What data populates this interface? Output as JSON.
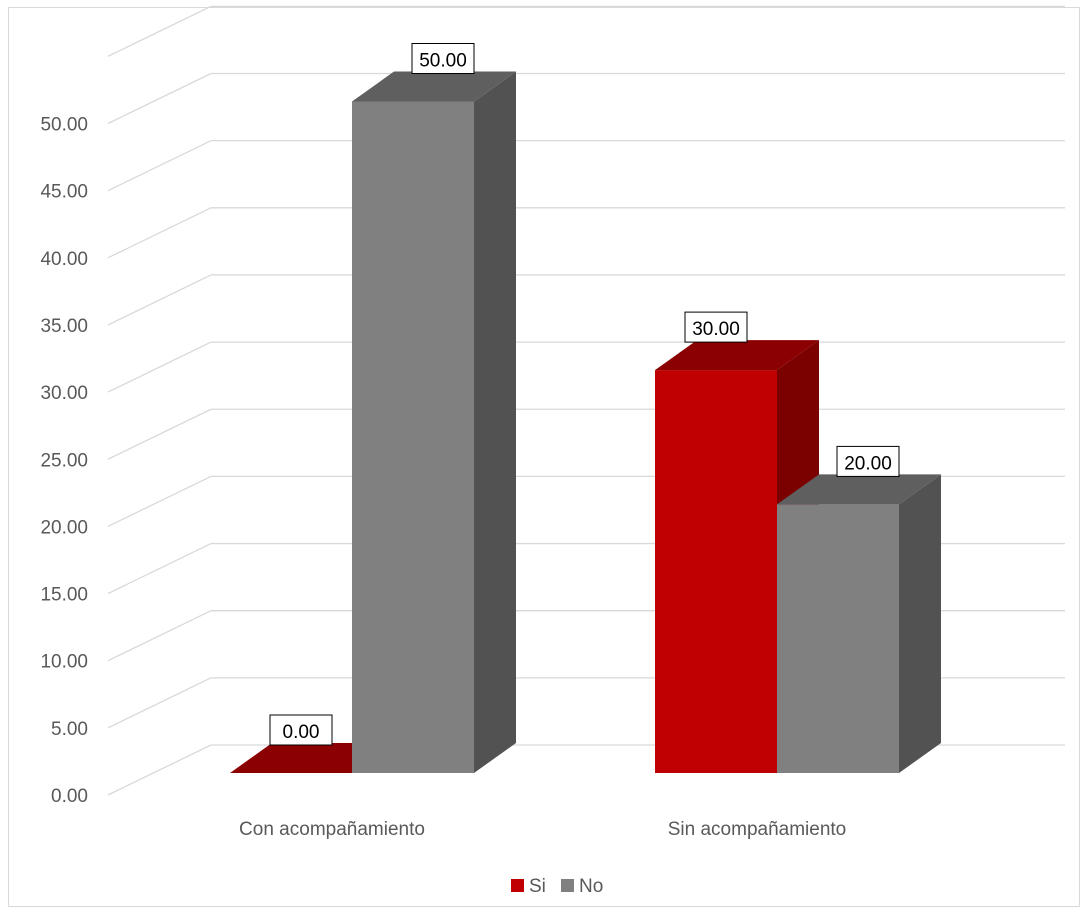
{
  "chart_data": {
    "type": "bar",
    "categories": [
      "Con acompañamiento",
      "Sin acompañamiento"
    ],
    "series": [
      {
        "name": "Si",
        "values": [
          0,
          30
        ],
        "color": "#c00000",
        "side_color": "#7b0000",
        "top_color": "#8b0000"
      },
      {
        "name": "No",
        "values": [
          50,
          20
        ],
        "color": "#808080",
        "side_color": "#525252",
        "top_color": "#5f5f5f"
      }
    ],
    "data_labels": [
      [
        "0.00",
        "30.00"
      ],
      [
        "50.00",
        "20.00"
      ]
    ],
    "y_ticks": [
      "0.00",
      "5.00",
      "10.00",
      "15.00",
      "20.00",
      "25.00",
      "30.00",
      "35.00",
      "40.00",
      "45.00",
      "50.00"
    ],
    "ylim": [
      0,
      50
    ],
    "grid": true,
    "three_d": true,
    "legend_position": "bottom",
    "title": "",
    "xlabel": "",
    "ylabel": ""
  }
}
